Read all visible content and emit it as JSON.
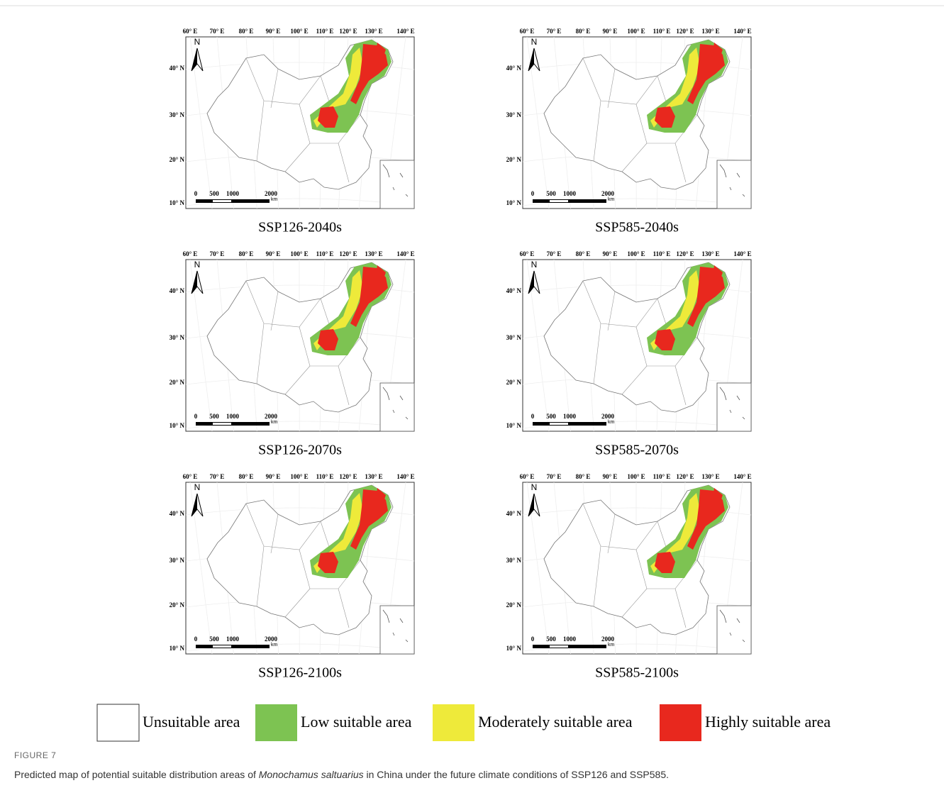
{
  "figure": {
    "panels": [
      {
        "label": "SSP126-2040s"
      },
      {
        "label": "SSP585-2040s"
      },
      {
        "label": "SSP126-2070s"
      },
      {
        "label": "SSP585-2070s"
      },
      {
        "label": "SSP126-2100s"
      },
      {
        "label": "SSP585-2100s"
      }
    ],
    "lon_ticks": [
      "60° E",
      "70° E",
      "80° E",
      "90° E",
      "100° E",
      "110° E",
      "120° E",
      "130° E",
      "140° E"
    ],
    "lat_ticks": [
      "40° N",
      "30° N",
      "20° N",
      "10° N"
    ],
    "north": "N",
    "scale_labels": [
      "0",
      "500",
      "1000",
      "2000"
    ],
    "scale_unit": "km",
    "legend": [
      {
        "label": "Unsuitable area",
        "color": "#ffffff"
      },
      {
        "label": "Low suitable area",
        "color": "#7dc352"
      },
      {
        "label": "Moderately suitable area",
        "color": "#eeea3a"
      },
      {
        "label": "Highly suitable area",
        "color": "#e8281e"
      }
    ],
    "caption": {
      "number": "FIGURE 7",
      "before": "Predicted map of potential suitable distribution areas of ",
      "species": "Monochamus saltuarius",
      "after": " in China under the future climate conditions of SSP126 and SSP585."
    }
  }
}
